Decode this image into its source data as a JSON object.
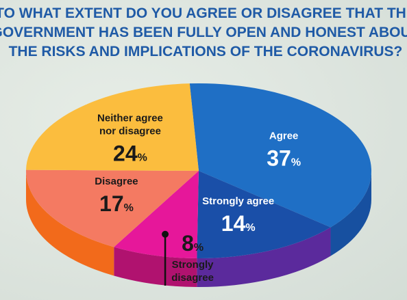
{
  "title_lines": [
    "TO WHAT EXTENT DO YOU AGREE OR DISAGREE THAT THE",
    "GOVERNMENT HAS BEEN FULLY OPEN AND HONEST ABOUT",
    "THE RISKS AND IMPLICATIONS OF THE CORONAVIRUS?"
  ],
  "chart_data": {
    "type": "pie",
    "title": "TO WHAT EXTENT DO YOU AGREE OR DISAGREE THAT THE GOVERNMENT HAS BEEN FULLY OPEN AND HONEST ABOUT THE RISKS AND IMPLICATIONS OF THE CORONAVIRUS?",
    "slices": [
      {
        "label": "Agree",
        "value": 37,
        "display": "37",
        "unit": "%",
        "color": "#1f6fc5",
        "side_color": "#1750a0",
        "text_color": "#ffffff"
      },
      {
        "label": "Strongly agree",
        "value": 14,
        "display": "14",
        "unit": "%",
        "color": "#1a4fa8",
        "side_color": "#5b2a9c",
        "text_color": "#ffffff"
      },
      {
        "label": "Strongly disagree",
        "value": 8,
        "display": "8",
        "unit": "%",
        "color": "#e6179a",
        "side_color": "#b0126f",
        "text_color": "#1a1a1a"
      },
      {
        "label": "Disagree",
        "value": 17,
        "display": "17",
        "unit": "%",
        "color": "#f47a62",
        "side_color": "#f26a1b",
        "text_color": "#1a1a1a"
      },
      {
        "label": "Neither agree nor disagree",
        "value": 24,
        "display": "24",
        "unit": "%",
        "color": "#fbbd3e",
        "side_color": "#f5a02a",
        "text_color": "#1a1a1a"
      }
    ],
    "label_lines": {
      "Strongly disagree": [
        "Strongly",
        "disagree"
      ],
      "Neither agree nor disagree": [
        "Neither agree",
        "nor disagree"
      ]
    }
  }
}
